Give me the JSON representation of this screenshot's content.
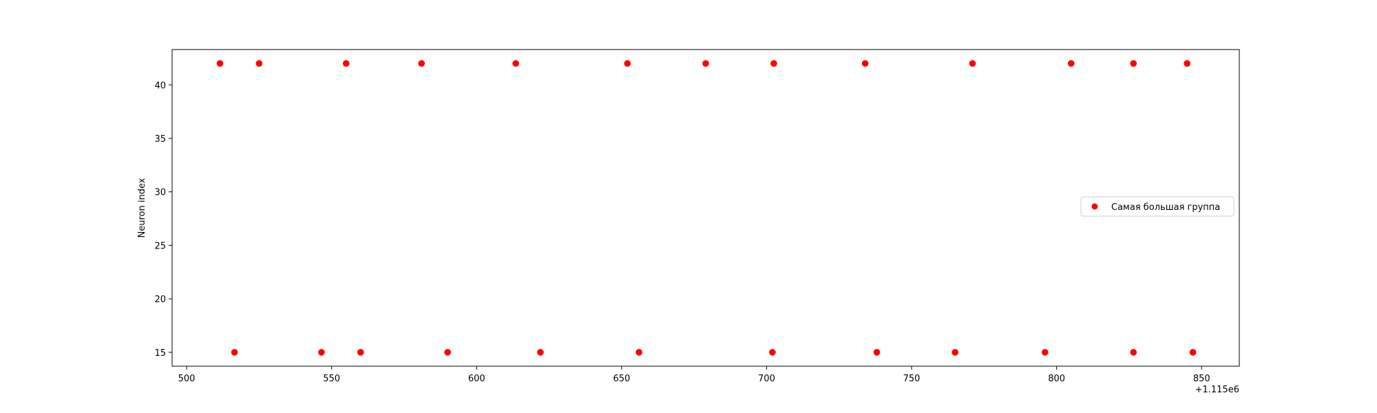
{
  "chart_data": {
    "type": "scatter",
    "title": "",
    "xlabel": "",
    "ylabel": "Neuron index",
    "x_offset_label": "+1.115e6",
    "xlim": [
      495,
      863
    ],
    "ylim": [
      13.7,
      43.3
    ],
    "xticks": [
      500,
      550,
      600,
      650,
      700,
      750,
      800,
      850
    ],
    "yticks": [
      15,
      20,
      25,
      30,
      35,
      40
    ],
    "grid": false,
    "legend_position": "center-right",
    "series": [
      {
        "name": "Самая большая группа",
        "color": "#ff0000",
        "points": [
          {
            "x": 511.5,
            "y": 42
          },
          {
            "x": 525,
            "y": 42
          },
          {
            "x": 555,
            "y": 42
          },
          {
            "x": 581,
            "y": 42
          },
          {
            "x": 613.5,
            "y": 42
          },
          {
            "x": 652,
            "y": 42
          },
          {
            "x": 679,
            "y": 42
          },
          {
            "x": 702.5,
            "y": 42
          },
          {
            "x": 734,
            "y": 42
          },
          {
            "x": 771,
            "y": 42
          },
          {
            "x": 805,
            "y": 42
          },
          {
            "x": 826.5,
            "y": 42
          },
          {
            "x": 845,
            "y": 42
          },
          {
            "x": 516.5,
            "y": 15
          },
          {
            "x": 546.5,
            "y": 15
          },
          {
            "x": 560,
            "y": 15
          },
          {
            "x": 590,
            "y": 15
          },
          {
            "x": 622,
            "y": 15
          },
          {
            "x": 656,
            "y": 15
          },
          {
            "x": 702,
            "y": 15
          },
          {
            "x": 738,
            "y": 15
          },
          {
            "x": 765,
            "y": 15
          },
          {
            "x": 796,
            "y": 15
          },
          {
            "x": 826.5,
            "y": 15
          },
          {
            "x": 847,
            "y": 15
          }
        ]
      }
    ]
  }
}
